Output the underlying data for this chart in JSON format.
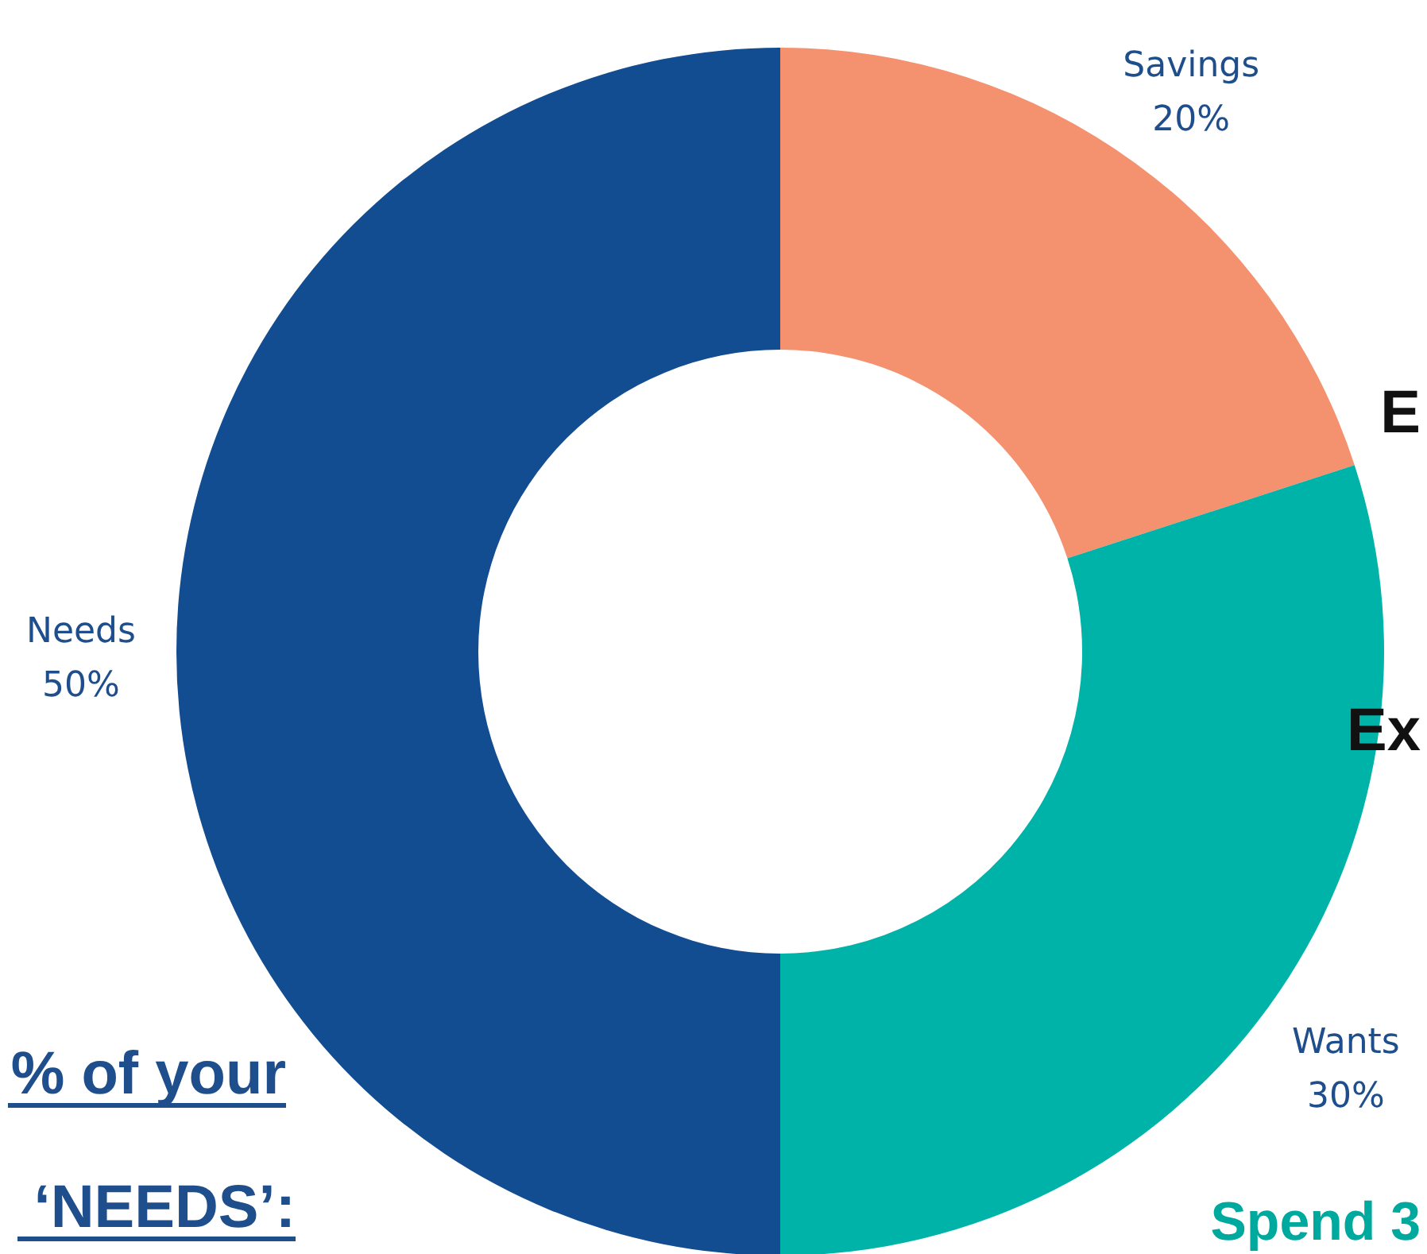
{
  "chart_data": {
    "type": "donut",
    "categories": [
      "Savings",
      "Wants",
      "Needs"
    ],
    "values": [
      20,
      30,
      50
    ],
    "colors": [
      "#f4916f",
      "#00b3a9",
      "#124d91"
    ],
    "value_labels": [
      "20%",
      "30%",
      "50%"
    ],
    "annotations": [
      "E",
      "Ex",
      "% of your",
      "‘NEEDS’:",
      "Spend 3"
    ]
  }
}
